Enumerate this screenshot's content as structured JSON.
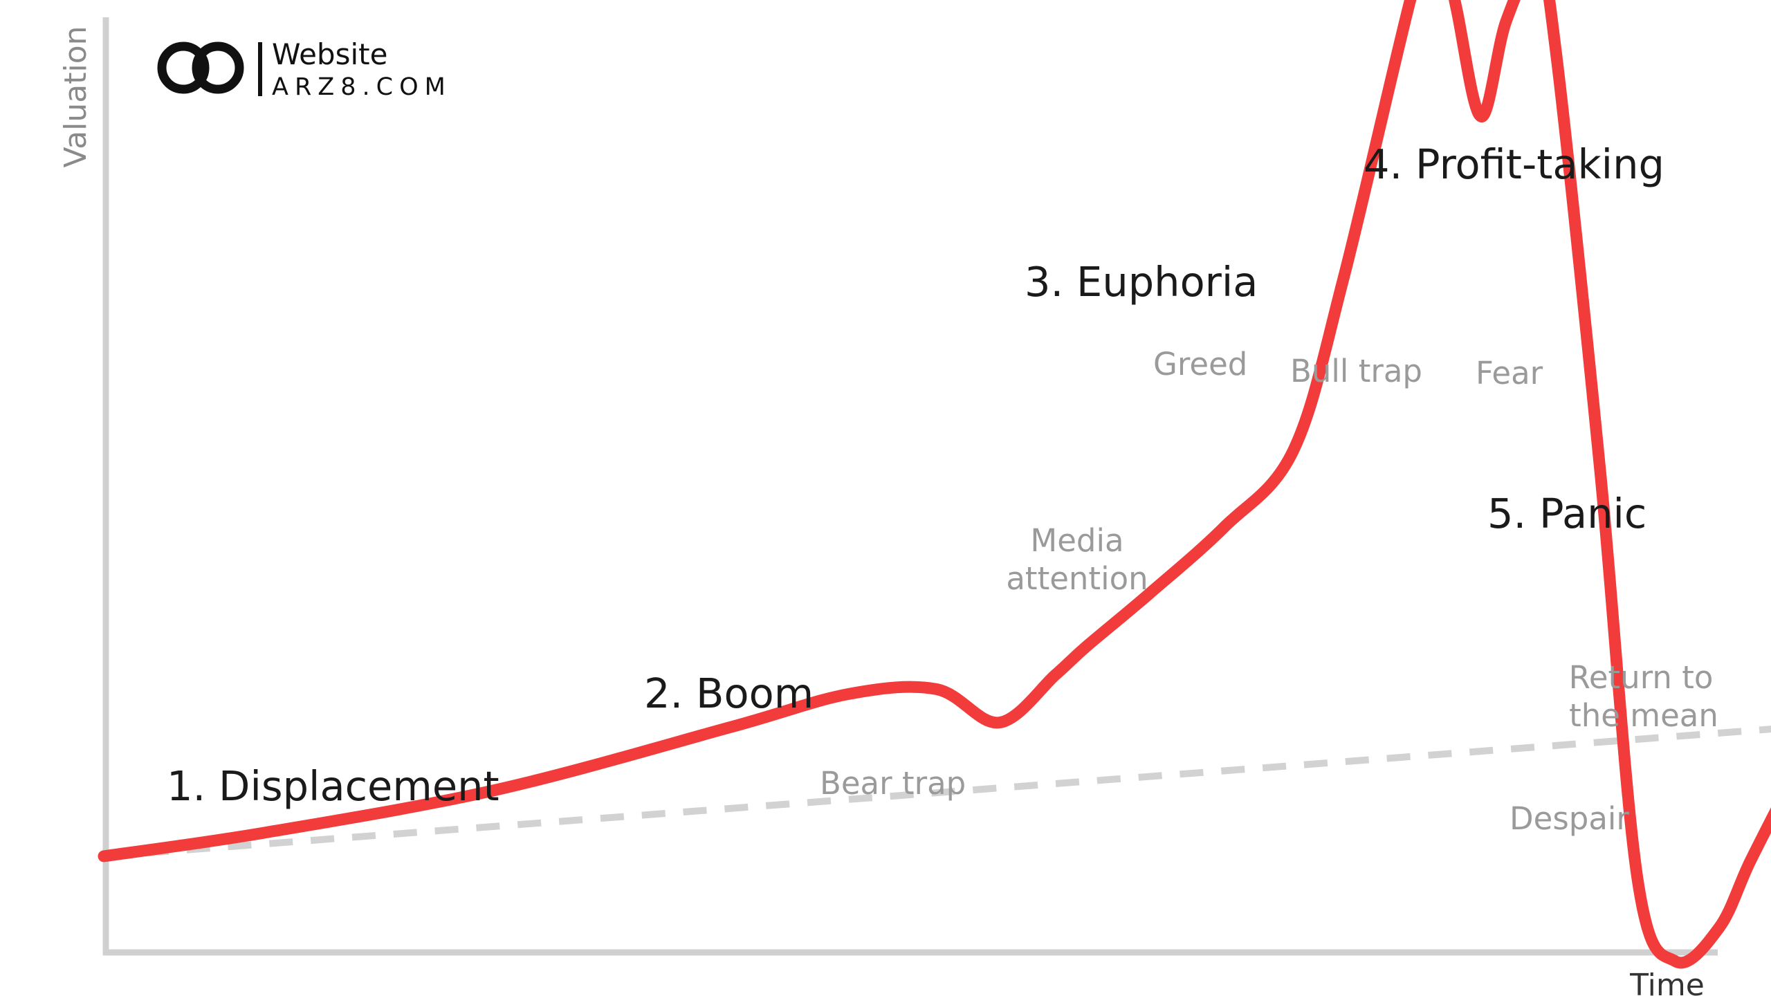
{
  "logo": {
    "brand_name": "Website",
    "domain": "ARZ8.COM"
  },
  "chart_data": {
    "type": "line",
    "title": "",
    "xlabel": "Time",
    "ylabel": "Valuation",
    "grid": false,
    "legend": "none",
    "colors": {
      "curve": "#f23c3c",
      "trend": "#d2d2d2",
      "axis": "#d0d0d0",
      "phase_label": "#1a1a1a",
      "emotion_label": "#9a9a9a"
    },
    "phases": [
      {
        "label": "1. Displacement"
      },
      {
        "label": "2. Boom"
      },
      {
        "label": "3. Euphoria"
      },
      {
        "label": "4. Profit-taking"
      },
      {
        "label": "5. Panic"
      }
    ],
    "annotations": [
      {
        "lines": [
          "Bear trap"
        ]
      },
      {
        "lines": [
          "Media",
          "attention"
        ]
      },
      {
        "lines": [
          "Greed"
        ]
      },
      {
        "lines": [
          "Bull trap"
        ]
      },
      {
        "lines": [
          "Fear"
        ]
      },
      {
        "lines": [
          "Despair"
        ]
      },
      {
        "lines": [
          "Return to",
          "the mean"
        ]
      }
    ],
    "series": [
      {
        "x": [
          0,
          2.6,
          6.3,
          10,
          11.9,
          13.3,
          14.3,
          15.2,
          15.7,
          16.7,
          17.9,
          19,
          19.8,
          20.9,
          21.3,
          21.6,
          22,
          22.4,
          22.9,
          23.2,
          23.9,
          24.5,
          25.1,
          25.8,
          26.3,
          27
        ],
        "y": [
          0.9,
          1.4,
          2.3,
          3.6,
          4.3,
          4.4,
          3.7,
          4.7,
          5.3,
          6.4,
          7.8,
          9.4,
          13,
          19,
          20.5,
          18.7,
          16.4,
          18.4,
          19.6,
          17.7,
          9,
          0.4,
          -1.3,
          -0.6,
          0.8,
          2.6
        ]
      }
    ],
    "trend": {
      "x": [
        0,
        27
      ],
      "y": [
        0.9,
        3.6
      ]
    }
  }
}
